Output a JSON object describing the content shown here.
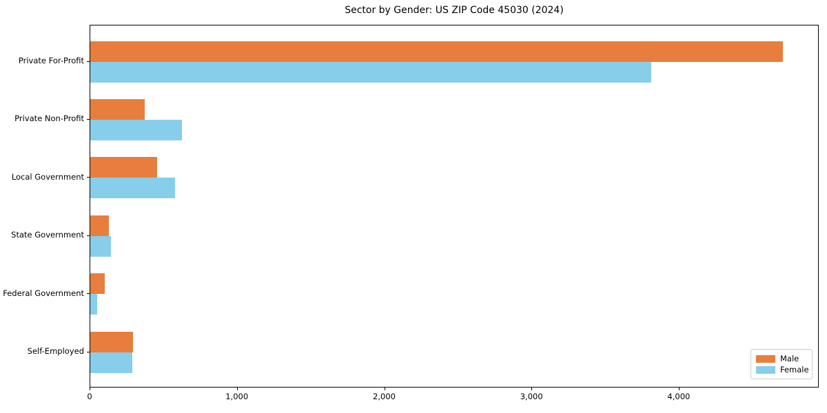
{
  "chart_data": {
    "type": "bar",
    "orientation": "horizontal",
    "title": "Sector by Gender: US ZIP Code 45030 (2024)",
    "categories": [
      "Private For-Profit",
      "Private Non-Profit",
      "Local Government",
      "State Government",
      "Federal Government",
      "Self-Employed"
    ],
    "series": [
      {
        "name": "Male",
        "color": "#e87e3d",
        "values": [
          4700,
          370,
          455,
          125,
          100,
          290
        ]
      },
      {
        "name": "Female",
        "color": "#87ceeb",
        "values": [
          3810,
          620,
          575,
          140,
          45,
          285
        ]
      }
    ],
    "xlabel": "",
    "ylabel": "",
    "xlim": [
      0,
      4950
    ],
    "xticks": [
      0,
      1000,
      2000,
      3000,
      4000
    ],
    "xtick_labels": [
      "0",
      "1,000",
      "2,000",
      "3,000",
      "4,000"
    ],
    "legend_position": "lower right",
    "grid": false,
    "background_color": "#ffffff",
    "axis_color": "#000000"
  }
}
